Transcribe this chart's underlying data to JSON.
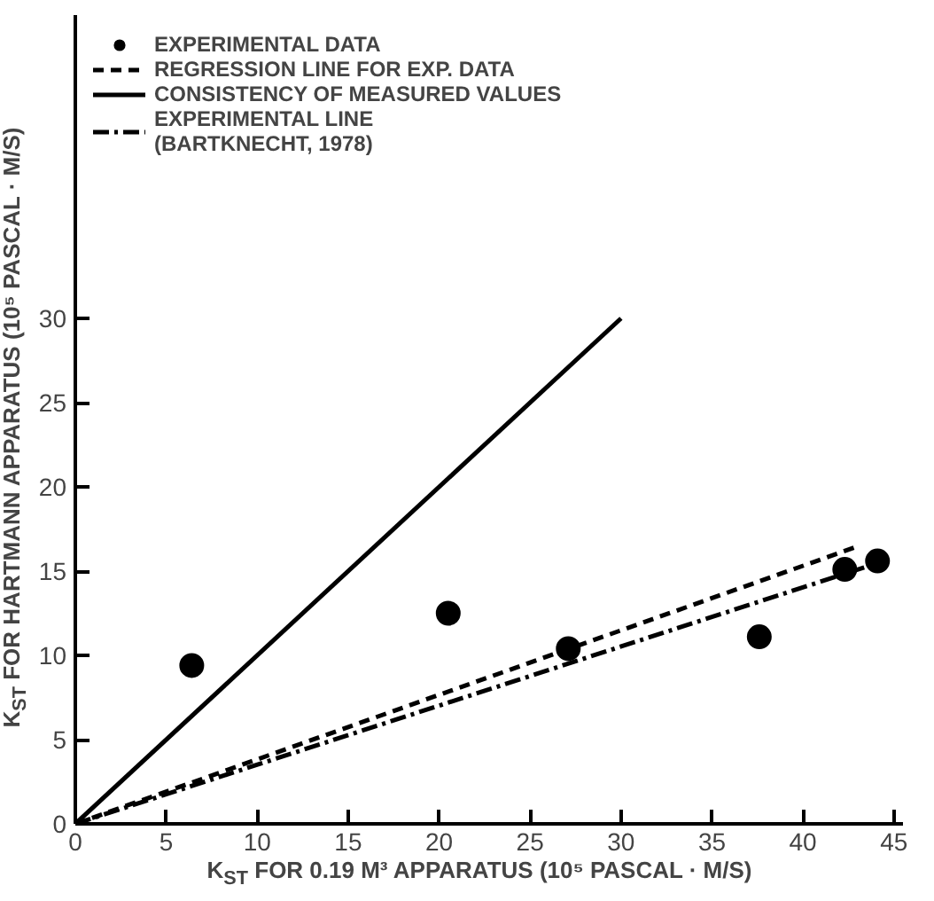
{
  "chart_data": {
    "type": "scatter",
    "xlabel": "K$_{ST}$ FOR 0.19 M³ APPARATUS (10⁵ PASCAL · M/S)",
    "ylabel": "K$_{ST}$ FOR HARTMANN APPARATUS (10⁵ PASCAL · M/S)",
    "xlim": [
      0,
      45.5
    ],
    "ylim": [
      0,
      48
    ],
    "xticks": [
      0,
      5,
      10,
      15,
      20,
      25,
      30,
      35,
      40,
      45
    ],
    "yticks": [
      0,
      5,
      10,
      15,
      20,
      25,
      30
    ],
    "grid": false,
    "legend": "top left",
    "series": [
      {
        "name": "EXPERIMENTAL DATA",
        "marker": "circle",
        "color": "#000000",
        "x": [
          6.4,
          20.5,
          27.1,
          37.6,
          42.3,
          44.1
        ],
        "values": [
          9.4,
          12.5,
          10.4,
          11.1,
          15.1,
          15.6
        ]
      },
      {
        "name": "REGRESSION LINE FOR EXP. DATA",
        "type": "line",
        "line_style": "dashed",
        "color": "#000000",
        "x": [
          0,
          43.1
        ],
        "values": [
          0,
          16.5
        ]
      },
      {
        "name": "CONSISTENCY OF MEASURED VALUES",
        "type": "line",
        "line_style": "solid",
        "color": "#000000",
        "x": [
          0,
          30
        ],
        "values": [
          0,
          30
        ]
      },
      {
        "name": "EXPERIMENTAL LINE\n(BARTKNECHT, 1978)",
        "type": "line",
        "line_style": "dashdot",
        "color": "#000000",
        "x": [
          0,
          43.6
        ],
        "values": [
          0,
          15.3
        ]
      }
    ]
  }
}
